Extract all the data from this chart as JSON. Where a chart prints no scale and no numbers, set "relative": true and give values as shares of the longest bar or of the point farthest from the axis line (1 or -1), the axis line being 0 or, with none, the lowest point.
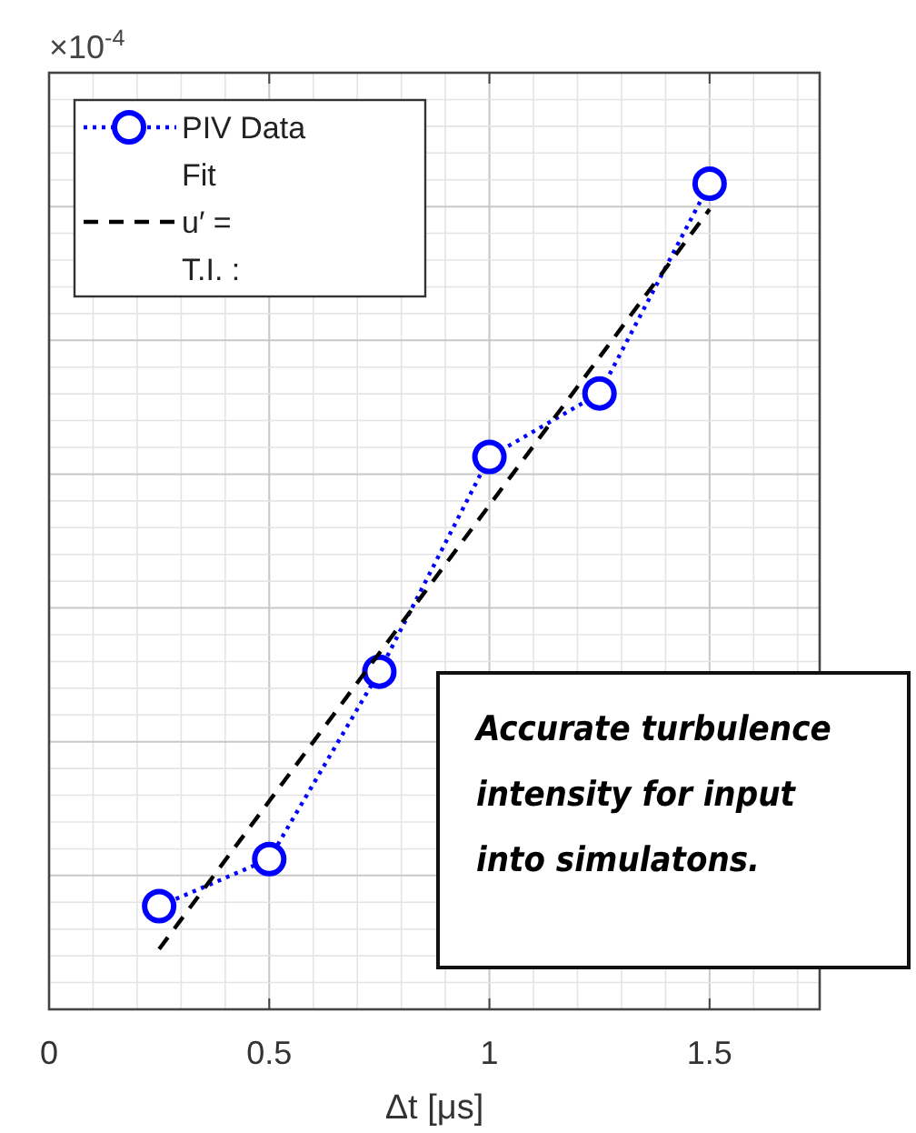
{
  "chart_data": {
    "type": "line",
    "relative": true,
    "xlabel": "Δt [μs]",
    "x": [
      0.25,
      0.5,
      0.75,
      1.0,
      1.25,
      1.5
    ],
    "xlim": [
      0,
      1.75
    ],
    "xticks": [
      0,
      0.5,
      1,
      1.5
    ],
    "series": [
      {
        "name": "PIV Data",
        "color": "#0000ff",
        "marker": "circle",
        "line_style": "dotted",
        "values": [
          0.125,
          0.182,
          0.409,
          0.669,
          0.746,
          1
        ]
      },
      {
        "name": "u′ =",
        "color": "#000000",
        "marker": "none",
        "line_style": "dashed",
        "x": [
          0.25,
          1.5
        ],
        "values": [
          0.073,
          0.969
        ]
      }
    ],
    "annotations": [
      "Fit",
      "T.I. :",
      "×10$^{-4}$",
      "Accurate turbulence\nintensity for input\ninto simulatons."
    ],
    "grid": true,
    "legend": "top left"
  }
}
